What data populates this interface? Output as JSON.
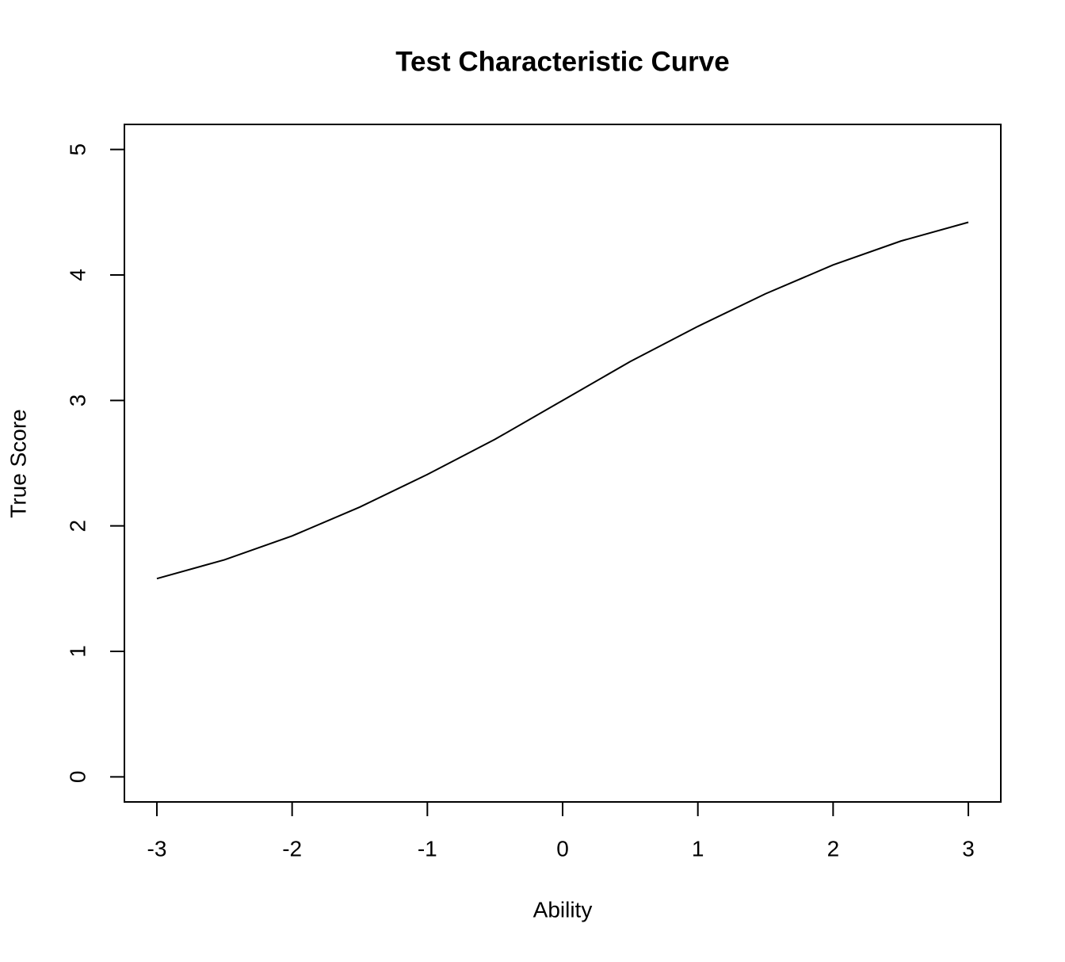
{
  "chart_data": {
    "type": "line",
    "title": "Test Characteristic Curve",
    "x_label": "Ability",
    "y_label": "True Score",
    "x": [
      -3,
      -2.5,
      -2,
      -1.5,
      -1,
      -0.5,
      0,
      0.5,
      1,
      1.5,
      2,
      2.5,
      3
    ],
    "series": [
      {
        "name": "Test Characteristic Curve",
        "color": "#000000",
        "values": [
          1.58,
          1.73,
          1.92,
          2.15,
          2.41,
          2.69,
          3.0,
          3.31,
          3.59,
          3.85,
          4.08,
          4.27,
          4.42
        ]
      }
    ],
    "xlim": [
      -3.24,
      3.24
    ],
    "ylim": [
      -0.2,
      5.2
    ],
    "xticks": [
      -3,
      -2,
      -1,
      0,
      1,
      2,
      3
    ],
    "yticks": [
      0,
      1,
      2,
      3,
      4,
      5
    ],
    "grid": false
  }
}
